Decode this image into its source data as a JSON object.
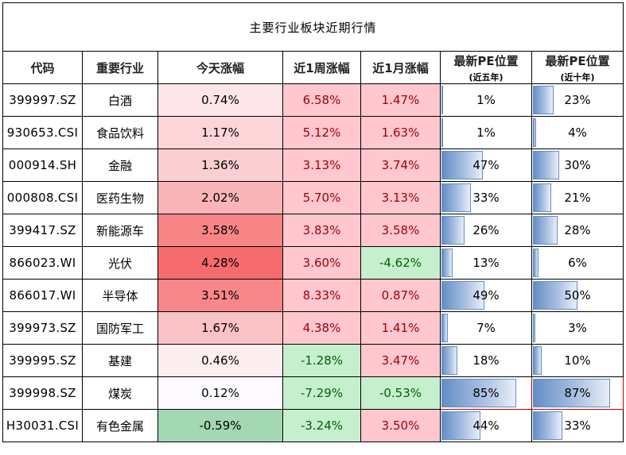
{
  "title": "主要行业板块近期行情",
  "headers": {
    "code": "代码",
    "industry": "重要行业",
    "today": "今天涨幅",
    "week": "近1周涨幅",
    "month": "近1月涨幅",
    "pe5_main": "最新PE位置",
    "pe5_sub": "(近五年)",
    "pe10_main": "最新PE位置",
    "pe10_sub": "(近十年)"
  },
  "colors": {
    "positive_text": "#9c0006",
    "positive_fill": "#ffc7ce",
    "negative_text": "#006100",
    "negative_fill": "#c6efce",
    "databar": "#638ec6",
    "highlight_border": "#c00000"
  },
  "rows": [
    {
      "code": "399997.SZ",
      "industry": "白酒",
      "today": "0.74%",
      "week": "6.58%",
      "month": "1.47%",
      "pe5": "1%",
      "pe10": "23%",
      "today_bg": "#fde6e9"
    },
    {
      "code": "930653.CSI",
      "industry": "食品饮料",
      "today": "1.17%",
      "week": "5.12%",
      "month": "1.63%",
      "pe5": "1%",
      "pe10": "4%",
      "today_bg": "#fcd5d9"
    },
    {
      "code": "000914.SH",
      "industry": "金融",
      "today": "1.36%",
      "week": "3.13%",
      "month": "3.74%",
      "pe5": "47%",
      "pe10": "30%",
      "today_bg": "#fbced2"
    },
    {
      "code": "000808.CSI",
      "industry": "医药生物",
      "today": "2.02%",
      "week": "5.70%",
      "month": "3.13%",
      "pe5": "33%",
      "pe10": "21%",
      "today_bg": "#f9b5b8"
    },
    {
      "code": "399417.SZ",
      "industry": "新能源车",
      "today": "3.58%",
      "week": "3.83%",
      "month": "3.58%",
      "pe5": "26%",
      "pe10": "28%",
      "today_bg": "#f78585"
    },
    {
      "code": "866023.WI",
      "industry": "光伏",
      "today": "4.28%",
      "week": "3.60%",
      "month": "-4.62%",
      "pe5": "13%",
      "pe10": "6%",
      "today_bg": "#f66b6e"
    },
    {
      "code": "866017.WI",
      "industry": "半导体",
      "today": "3.51%",
      "week": "8.33%",
      "month": "0.87%",
      "pe5": "49%",
      "pe10": "50%",
      "today_bg": "#f78788"
    },
    {
      "code": "399973.SZ",
      "industry": "国防军工",
      "today": "1.67%",
      "week": "4.38%",
      "month": "1.41%",
      "pe5": "7%",
      "pe10": "3%",
      "today_bg": "#fac3c6"
    },
    {
      "code": "399995.SZ",
      "industry": "基建",
      "today": "0.46%",
      "week": "-1.28%",
      "month": "3.47%",
      "pe5": "18%",
      "pe10": "10%",
      "today_bg": "#fdeef0"
    },
    {
      "code": "399998.SZ",
      "industry": "煤炭",
      "today": "0.12%",
      "week": "-7.29%",
      "month": "-0.53%",
      "pe5": "85%",
      "pe10": "87%",
      "today_bg": "#fdfaff"
    },
    {
      "code": "H30031.CSI",
      "industry": "有色金属",
      "today": "-0.59%",
      "week": "-3.24%",
      "month": "3.50%",
      "pe5": "44%",
      "pe10": "33%",
      "today_bg": "#a3d8b2"
    }
  ]
}
